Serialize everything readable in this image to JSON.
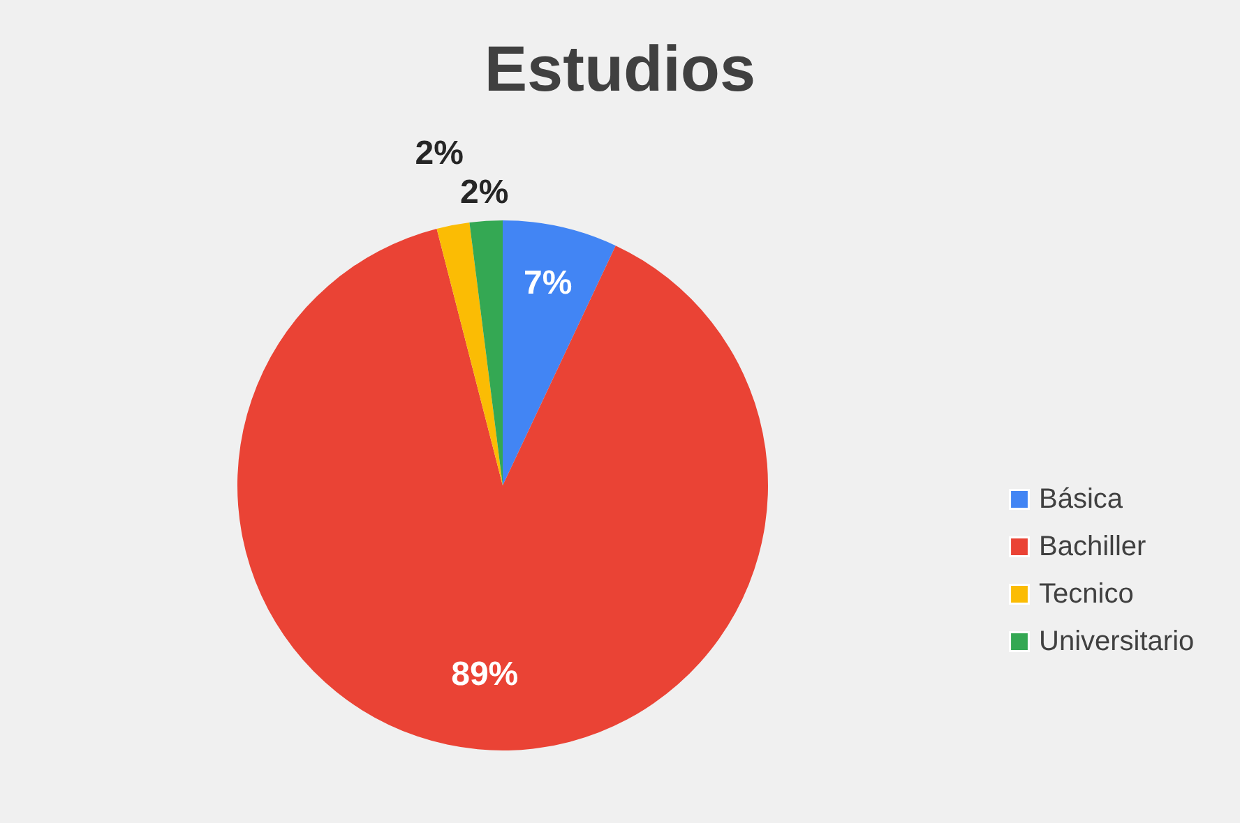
{
  "chart_data": {
    "type": "pie",
    "title": "Estudios",
    "categories": [
      "Básica",
      "Bachiller",
      "Tecnico",
      "Universitario"
    ],
    "values": [
      7,
      89,
      2,
      2
    ],
    "colors": [
      "#4285f4",
      "#ea4335",
      "#fbbc04",
      "#34a853"
    ],
    "value_labels": [
      "7%",
      "89%",
      "2%",
      "2%"
    ],
    "legend": "right"
  }
}
